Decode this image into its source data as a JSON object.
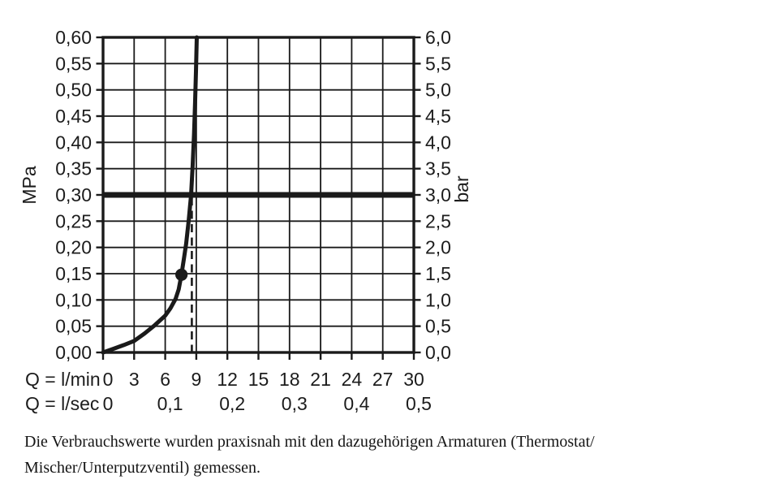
{
  "page": {
    "caption": {
      "line1": "Die Verbrauchswerte wurden praxisnah mit den dazugehörigen Armaturen (Thermostat/",
      "line2": "Mischer/Unterputzventil) gemessen."
    }
  },
  "chart_data": {
    "type": "line",
    "title": "",
    "grid": true,
    "colors": {
      "line": "#1a1a1a",
      "text": "#1c1c1c",
      "background": "#ffffff"
    },
    "x_axis": {
      "range_lmin": [
        0,
        30
      ],
      "grid_step_lmin": 3,
      "row1_label": "Q = l/min",
      "row1_ticks": [
        "0",
        "3",
        "6",
        "9",
        "12",
        "15",
        "18",
        "21",
        "24",
        "27",
        "30"
      ],
      "row1_values": [
        0,
        3,
        6,
        9,
        12,
        15,
        18,
        21,
        24,
        27,
        30
      ],
      "row2_label": "Q = l/sec",
      "row2_ticks": [
        "0",
        "0,1",
        "0,2",
        "0,3",
        "0,4",
        "0,5"
      ],
      "row2_values": [
        0,
        6,
        12,
        18,
        24,
        30
      ]
    },
    "y_axis_left": {
      "label": "MPa",
      "range": [
        0,
        0.6
      ],
      "grid_step": 0.05,
      "ticks": [
        "0,60",
        "0,55",
        "0,50",
        "0,45",
        "0,40",
        "0,35",
        "0,30",
        "0,25",
        "0,20",
        "0,15",
        "0,10",
        "0,05",
        "0,00"
      ]
    },
    "y_axis_right": {
      "label": "bar",
      "range": [
        0,
        6.0
      ],
      "ticks": [
        "6,0",
        "5,5",
        "5,0",
        "4,5",
        "4,0",
        "3,5",
        "3,0",
        "2,5",
        "2,0",
        "1,5",
        "1,0",
        "0,5",
        "0,0"
      ]
    },
    "series": [
      {
        "name": "flow-pressure-curve",
        "points_lmin_mpa": [
          [
            0,
            0
          ],
          [
            1,
            0.007
          ],
          [
            2,
            0.014
          ],
          [
            3,
            0.022
          ],
          [
            4,
            0.036
          ],
          [
            5,
            0.052
          ],
          [
            6,
            0.07
          ],
          [
            6.5,
            0.084
          ],
          [
            7,
            0.102
          ],
          [
            7.3,
            0.12
          ],
          [
            7.57,
            0.148
          ],
          [
            7.8,
            0.178
          ],
          [
            8.02,
            0.207
          ],
          [
            8.27,
            0.252
          ],
          [
            8.5,
            0.3
          ],
          [
            8.65,
            0.355
          ],
          [
            8.78,
            0.415
          ],
          [
            8.88,
            0.475
          ],
          [
            8.97,
            0.535
          ],
          [
            9.05,
            0.6
          ]
        ]
      }
    ],
    "annotations": {
      "bold_horizontal_line_mpa": 0.3,
      "dashed_vertical_line_lmin": 8.57,
      "dashed_vertical_line_top_mpa": 0.3,
      "marker_dot": {
        "lmin": 7.57,
        "mpa": 0.148
      }
    }
  }
}
